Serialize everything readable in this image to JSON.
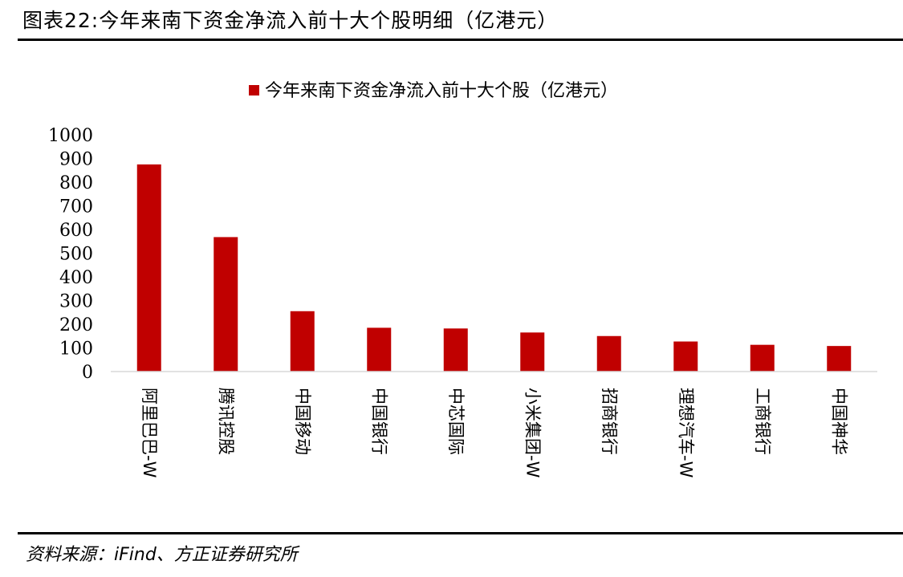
{
  "header": {
    "title": "图表22:今年来南下资金净流入前十大个股明细（亿港元）"
  },
  "footer": {
    "source": "资料来源：iFind、方正证券研究所"
  },
  "chart_data": {
    "type": "bar",
    "title": "",
    "xlabel": "",
    "ylabel": "",
    "ylim": [
      0,
      1000
    ],
    "yticks": [
      0,
      100,
      200,
      300,
      400,
      500,
      600,
      700,
      800,
      900,
      1000
    ],
    "grid": false,
    "legend_position": "top-center",
    "bar_color": "#C00000",
    "categories": [
      "阿里巴巴-W",
      "腾讯控股",
      "中国移动",
      "中国银行",
      "中芯国际",
      "小米集团-W",
      "招商银行",
      "理想汽车-W",
      "工商银行",
      "中国神华"
    ],
    "series": [
      {
        "name": "今年来南下资金净流入前十大个股（亿港元）",
        "values": [
          875,
          568,
          255,
          185,
          182,
          165,
          150,
          127,
          113,
          108
        ]
      }
    ]
  }
}
